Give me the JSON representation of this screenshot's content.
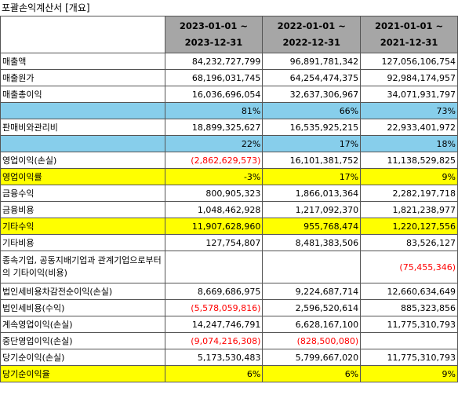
{
  "title": "포괄손익계산서 [개요]",
  "headers": [
    "",
    "2023-01-01 ~|2023-12-31",
    "2022-01-01 ~|2022-12-31",
    "2021-01-01 ~|2021-12-31"
  ],
  "rows": [
    {
      "label": "매출액",
      "style": "",
      "values": [
        "84,232,727,799",
        "96,891,781,342",
        "127,056,106,754"
      ],
      "neg": [
        false,
        false,
        false
      ]
    },
    {
      "label": "매출원가",
      "style": "",
      "values": [
        "68,196,031,745",
        "64,254,474,375",
        "92,984,174,957"
      ],
      "neg": [
        false,
        false,
        false
      ]
    },
    {
      "label": "매출총이익",
      "style": "",
      "values": [
        "16,036,696,054",
        "32,637,306,967",
        "34,071,931,797"
      ],
      "neg": [
        false,
        false,
        false
      ]
    },
    {
      "label": "",
      "style": "blue",
      "values": [
        "81%",
        "66%",
        "73%"
      ],
      "neg": [
        false,
        false,
        false
      ]
    },
    {
      "label": "판매비와관리비",
      "style": "",
      "values": [
        "18,899,325,627",
        "16,535,925,215",
        "22,933,401,972"
      ],
      "neg": [
        false,
        false,
        false
      ]
    },
    {
      "label": "",
      "style": "blue",
      "values": [
        "22%",
        "17%",
        "18%"
      ],
      "neg": [
        false,
        false,
        false
      ]
    },
    {
      "label": "영업이익(손실)",
      "style": "",
      "values": [
        "(2,862,629,573)",
        "16,101,381,752",
        "11,138,529,825"
      ],
      "neg": [
        true,
        false,
        false
      ]
    },
    {
      "label": "영업이익률",
      "style": "yellow",
      "values": [
        "-3%",
        "17%",
        "9%"
      ],
      "neg": [
        false,
        false,
        false
      ]
    },
    {
      "label": "금융수익",
      "style": "",
      "values": [
        "800,905,323",
        "1,866,013,364",
        "2,282,197,718"
      ],
      "neg": [
        false,
        false,
        false
      ]
    },
    {
      "label": "금융비용",
      "style": "",
      "values": [
        "1,048,462,928",
        "1,217,092,370",
        "1,821,238,977"
      ],
      "neg": [
        false,
        false,
        false
      ]
    },
    {
      "label": "기타수익",
      "style": "yellow",
      "values": [
        "11,907,628,960",
        "955,768,474",
        "1,220,127,556"
      ],
      "neg": [
        false,
        false,
        false
      ]
    },
    {
      "label": "기타비용",
      "style": "",
      "values": [
        "127,754,807",
        "8,481,383,506",
        "83,526,127"
      ],
      "neg": [
        false,
        false,
        false
      ]
    },
    {
      "label": "종속기업, 공동지배기업과 관계기업으로부터의 기타이익(비용)",
      "style": "wrap",
      "values": [
        "",
        "",
        "(75,455,346)"
      ],
      "neg": [
        false,
        false,
        true
      ]
    },
    {
      "label": "법인세비용차감전순이익(손실)",
      "style": "",
      "values": [
        "8,669,686,975",
        "9,224,687,714",
        "12,660,634,649"
      ],
      "neg": [
        false,
        false,
        false
      ]
    },
    {
      "label": "법인세비용(수익)",
      "style": "",
      "values": [
        "(5,578,059,816)",
        "2,596,520,614",
        "885,323,856"
      ],
      "neg": [
        true,
        false,
        false
      ]
    },
    {
      "label": "계속영업이익(손실)",
      "style": "",
      "values": [
        "14,247,746,791",
        "6,628,167,100",
        "11,775,310,793"
      ],
      "neg": [
        false,
        false,
        false
      ]
    },
    {
      "label": "중단영업이익(손실)",
      "style": "",
      "values": [
        "(9,074,216,308)",
        "(828,500,080)",
        ""
      ],
      "neg": [
        true,
        true,
        false
      ]
    },
    {
      "label": "당기순이익(손실)",
      "style": "",
      "values": [
        "5,173,530,483",
        "5,799,667,020",
        "11,775,310,793"
      ],
      "neg": [
        false,
        false,
        false
      ]
    },
    {
      "label": "당기순이익율",
      "style": "yellow",
      "values": [
        "6%",
        "6%",
        "9%"
      ],
      "neg": [
        false,
        false,
        false
      ]
    }
  ],
  "colors": {
    "header_bg": "#a6a6a6",
    "blue_row": "#87ceeb",
    "yellow_row": "#ffff00",
    "negative": "#ff0000"
  }
}
